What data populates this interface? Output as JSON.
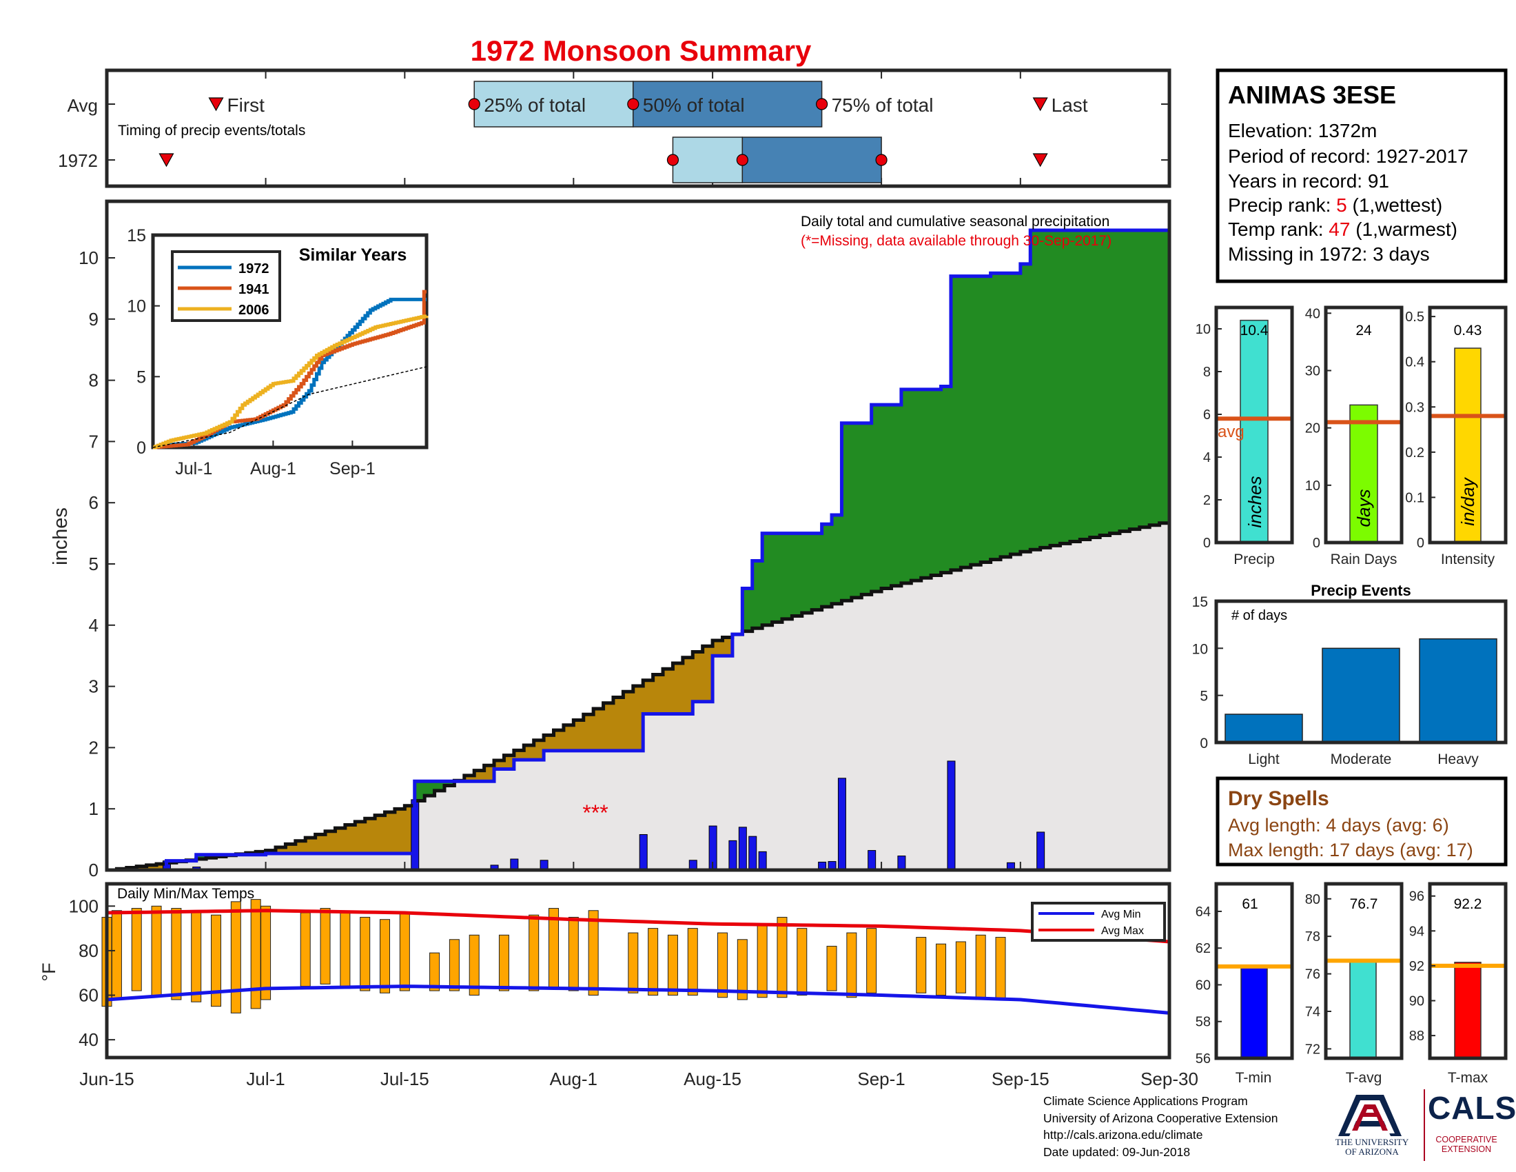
{
  "title": "1972 Monsoon Summary",
  "colors": {
    "title": "#e8000b",
    "below_avg": "#b8860b",
    "above_avg": "#228b22",
    "normal_area": "#e8e6e6",
    "observed_line": "#1515e8",
    "daily_bars": "#1515e8",
    "temp_bars": "#ffa500",
    "avg_max": "#e8000b",
    "avg_min": "#1515e8",
    "timing_light": "#add8e6",
    "timing_dark": "#4682b4",
    "event_bars": "#0072bd",
    "avg_line": "#d95319"
  },
  "timing": {
    "row_avg_label": "Avg",
    "row_year_label": "1972",
    "caption": "Timing of precip events/totals",
    "first_label": "First",
    "last_label": "Last",
    "p25_label": "25% of total",
    "p50_label": "50% of total",
    "p75_label": "75% of total",
    "avg_dates": {
      "first": "Jun-26",
      "p25": "Jul-22",
      "p50": "Aug-7",
      "p75": "Aug-26",
      "last": "Sep-17"
    },
    "year_dates": {
      "first": "Jun-21",
      "p25": "Aug-11",
      "p50": "Aug-18",
      "p75": "Sep-1",
      "last": "Sep-17"
    }
  },
  "main": {
    "ylabel": "inches",
    "caption": "Daily total and cumulative seasonal precipitation",
    "missing_note": "(*=Missing, data available through 30-Sep-2017)",
    "missing_marker": "***",
    "yticks": [
      "0",
      "1",
      "2",
      "3",
      "4",
      "5",
      "6",
      "7",
      "8",
      "9",
      "10"
    ],
    "xticks": [
      "Jun-15",
      "Jul-1",
      "Jul-15",
      "Aug-1",
      "Aug-15",
      "Sep-1",
      "Sep-15",
      "Sep-30"
    ]
  },
  "chart_data": [
    {
      "type": "area",
      "name": "Daily total and cumulative seasonal precipitation",
      "x_unit": "date",
      "ylabel": "inches",
      "ylim": [
        0,
        10.5
      ],
      "normal_cumulative": [
        [
          "Jun-15",
          0
        ],
        [
          "Jul-1",
          0.32
        ],
        [
          "Jul-15",
          1.05
        ],
        [
          "Aug-1",
          2.45
        ],
        [
          "Aug-15",
          3.75
        ],
        [
          "Sep-1",
          4.6
        ],
        [
          "Sep-15",
          5.2
        ],
        [
          "Sep-30",
          5.7
        ]
      ],
      "observed_cumulative": [
        [
          "Jun-15",
          0
        ],
        [
          "Jun-21",
          0.15
        ],
        [
          "Jun-24",
          0.25
        ],
        [
          "Jul-1",
          0.27
        ],
        [
          "Jul-15",
          0.27
        ],
        [
          "Jul-16",
          1.45
        ],
        [
          "Jul-21",
          1.45
        ],
        [
          "Jul-24",
          1.65
        ],
        [
          "Jul-26",
          1.8
        ],
        [
          "Jul-29",
          1.95
        ],
        [
          "Aug-7",
          1.95
        ],
        [
          "Aug-8",
          2.55
        ],
        [
          "Aug-12",
          2.55
        ],
        [
          "Aug-13",
          2.75
        ],
        [
          "Aug-15",
          3.5
        ],
        [
          "Aug-17",
          3.85
        ],
        [
          "Aug-18",
          4.6
        ],
        [
          "Aug-19",
          5.05
        ],
        [
          "Aug-20",
          5.5
        ],
        [
          "Aug-25",
          5.5
        ],
        [
          "Aug-26",
          5.65
        ],
        [
          "Aug-27",
          5.8
        ],
        [
          "Aug-28",
          7.3
        ],
        [
          "Aug-31",
          7.6
        ],
        [
          "Sep-3",
          7.85
        ],
        [
          "Sep-7",
          7.9
        ],
        [
          "Sep-8",
          9.7
        ],
        [
          "Sep-12",
          9.75
        ],
        [
          "Sep-15",
          9.9
        ],
        [
          "Sep-16",
          10.45
        ],
        [
          "Sep-30",
          10.45
        ]
      ],
      "daily_precip": [
        [
          "Jun-21",
          0.15
        ],
        [
          "Jun-24",
          0.05
        ],
        [
          "Jul-16",
          1.15
        ],
        [
          "Jul-24",
          0.08
        ],
        [
          "Jul-26",
          0.18
        ],
        [
          "Jul-29",
          0.16
        ],
        [
          "Aug-8",
          0.58
        ],
        [
          "Aug-13",
          0.16
        ],
        [
          "Aug-15",
          0.72
        ],
        [
          "Aug-17",
          0.48
        ],
        [
          "Aug-18",
          0.7
        ],
        [
          "Aug-19",
          0.55
        ],
        [
          "Aug-20",
          0.3
        ],
        [
          "Aug-26",
          0.13
        ],
        [
          "Aug-27",
          0.14
        ],
        [
          "Aug-28",
          1.5
        ],
        [
          "Aug-31",
          0.32
        ],
        [
          "Sep-3",
          0.23
        ],
        [
          "Sep-8",
          1.78
        ],
        [
          "Sep-14",
          0.12
        ],
        [
          "Sep-17",
          0.62
        ]
      ]
    },
    {
      "type": "line",
      "name": "Similar Years",
      "x_unit": "date",
      "xticks": [
        "Jul-1",
        "Aug-1",
        "Sep-1"
      ],
      "yticks": [
        "0",
        "5",
        "10",
        "15"
      ],
      "ylim": [
        0,
        15
      ],
      "series": [
        {
          "name": "1972",
          "color": "#0072bd",
          "points": [
            [
              "Jun-15",
              0
            ],
            [
              "Jun-21",
              0.2
            ],
            [
              "Jul-1",
              0.3
            ],
            [
              "Jul-15",
              1.4
            ],
            [
              "Jul-29",
              2
            ],
            [
              "Aug-8",
              2.5
            ],
            [
              "Aug-15",
              4
            ],
            [
              "Aug-20",
              6
            ],
            [
              "Aug-28",
              7.5
            ],
            [
              "Sep-8",
              9.7
            ],
            [
              "Sep-16",
              10.45
            ],
            [
              "Sep-30",
              10.45
            ]
          ]
        },
        {
          "name": "1941",
          "color": "#d95319",
          "points": [
            [
              "Jun-15",
              0
            ],
            [
              "Jun-28",
              0.2
            ],
            [
              "Jul-5",
              0.8
            ],
            [
              "Jul-15",
              1.8
            ],
            [
              "Jul-25",
              2
            ],
            [
              "Aug-5",
              3
            ],
            [
              "Aug-12",
              4.5
            ],
            [
              "Aug-20",
              6.5
            ],
            [
              "Sep-1",
              7.3
            ],
            [
              "Sep-15",
              8
            ],
            [
              "Sep-28",
              8.8
            ],
            [
              "Sep-29",
              11
            ]
          ]
        },
        {
          "name": "2006",
          "color": "#edb120",
          "points": [
            [
              "Jun-15",
              0
            ],
            [
              "Jun-22",
              0.5
            ],
            [
              "Jul-5",
              1
            ],
            [
              "Jul-15",
              1.8
            ],
            [
              "Jul-20",
              3
            ],
            [
              "Aug-1",
              4.5
            ],
            [
              "Aug-8",
              4.7
            ],
            [
              "Aug-18",
              6.5
            ],
            [
              "Aug-25",
              7.2
            ],
            [
              "Sep-10",
              8.5
            ],
            [
              "Sep-30",
              9.3
            ]
          ]
        },
        {
          "name": "avg",
          "color": "#000000",
          "dashed": true,
          "points": [
            [
              "Jun-15",
              0
            ],
            [
              "Jul-15",
              1.05
            ],
            [
              "Aug-15",
              3.75
            ],
            [
              "Sep-30",
              5.7
            ]
          ]
        }
      ]
    },
    {
      "type": "bar",
      "name": "Daily Min/Max Temps",
      "x_unit": "date",
      "ylabel": "°F",
      "ylim": [
        32,
        110
      ],
      "yticks": [
        "40",
        "60",
        "80",
        "100"
      ],
      "avg_max": [
        [
          "Jun-15",
          97
        ],
        [
          "Jul-1",
          98
        ],
        [
          "Jul-15",
          97
        ],
        [
          "Aug-1",
          94
        ],
        [
          "Aug-15",
          92
        ],
        [
          "Sep-1",
          91
        ],
        [
          "Sep-15",
          89
        ],
        [
          "Sep-30",
          84
        ]
      ],
      "avg_min": [
        [
          "Jun-15",
          58
        ],
        [
          "Jul-1",
          63
        ],
        [
          "Jul-15",
          64
        ],
        [
          "Aug-1",
          63
        ],
        [
          "Aug-15",
          62
        ],
        [
          "Sep-1",
          60
        ],
        [
          "Sep-15",
          58
        ],
        [
          "Sep-30",
          52
        ]
      ],
      "daily_min_max": [
        [
          "Jun-15",
          55,
          95
        ],
        [
          "Jun-16",
          58,
          98
        ],
        [
          "Jun-18",
          62,
          99
        ],
        [
          "Jun-20",
          60,
          100
        ],
        [
          "Jun-22",
          58,
          99
        ],
        [
          "Jun-24",
          57,
          97
        ],
        [
          "Jun-26",
          55,
          96
        ],
        [
          "Jun-28",
          52,
          102
        ],
        [
          "Jun-30",
          54,
          103
        ],
        [
          "Jul-1",
          58,
          100
        ],
        [
          "Jul-5",
          64,
          97
        ],
        [
          "Jul-7",
          65,
          99
        ],
        [
          "Jul-9",
          63,
          97
        ],
        [
          "Jul-11",
          62,
          95
        ],
        [
          "Jul-13",
          61,
          94
        ],
        [
          "Jul-15",
          62,
          97
        ],
        [
          "Jul-18",
          62,
          79
        ],
        [
          "Jul-20",
          62,
          85
        ],
        [
          "Jul-22",
          60,
          87
        ],
        [
          "Jul-25",
          62,
          87
        ],
        [
          "Jul-28",
          62,
          96
        ],
        [
          "Jul-30",
          63,
          99
        ],
        [
          "Aug-1",
          62,
          95
        ],
        [
          "Aug-3",
          60,
          98
        ],
        [
          "Aug-7",
          61,
          88
        ],
        [
          "Aug-9",
          60,
          90
        ],
        [
          "Aug-11",
          60,
          87
        ],
        [
          "Aug-13",
          60,
          90
        ],
        [
          "Aug-16",
          59,
          88
        ],
        [
          "Aug-18",
          58,
          85
        ],
        [
          "Aug-20",
          59,
          92
        ],
        [
          "Aug-22",
          59,
          95
        ],
        [
          "Aug-24",
          60,
          90
        ],
        [
          "Aug-27",
          62,
          82
        ],
        [
          "Aug-29",
          59,
          88
        ],
        [
          "Aug-31",
          61,
          90
        ],
        [
          "Sep-5",
          61,
          86
        ],
        [
          "Sep-7",
          60,
          83
        ],
        [
          "Sep-9",
          61,
          84
        ],
        [
          "Sep-11",
          58,
          87
        ],
        [
          "Sep-13",
          58,
          86
        ]
      ]
    },
    {
      "type": "bar",
      "name": "Summary stats",
      "categories": [
        "Precip",
        "Rain Days",
        "Intensity"
      ],
      "values": [
        10.4,
        24,
        0.43
      ],
      "averages": [
        5.8,
        21,
        0.28
      ],
      "units": [
        "inches",
        "days",
        "in/day"
      ],
      "ylims": [
        [
          0,
          11
        ],
        [
          0,
          41
        ],
        [
          0,
          0.52
        ]
      ],
      "bar_colors": [
        "#40e0d0",
        "#7cfc00",
        "#ffd700"
      ]
    },
    {
      "type": "bar",
      "name": "Precip Events",
      "title": "Precip Events",
      "ylabel": "# of days",
      "categories": [
        "Light",
        "Moderate",
        "Heavy"
      ],
      "values": [
        3,
        10,
        11
      ],
      "ylim": [
        0,
        15
      ]
    },
    {
      "type": "bar",
      "name": "Temperature summary",
      "categories": [
        "T-min",
        "T-avg",
        "T-max"
      ],
      "values": [
        61,
        76.7,
        92.2
      ],
      "averages": [
        61,
        76.7,
        92
      ],
      "ylims": [
        [
          56,
          65.5
        ],
        [
          71.5,
          80.8
        ],
        [
          86.7,
          96.7
        ]
      ],
      "bar_colors": [
        "#0000ff",
        "#40e0d0",
        "#ff0000"
      ]
    }
  ],
  "station": {
    "name": "ANIMAS 3ESE",
    "elevation_line": "Elevation: 1372m",
    "period_line": "Period of record: 1927-2017",
    "years_line": "Years in record: 91",
    "precip_rank_prefix": "Precip rank: ",
    "precip_rank_value": "5",
    "precip_rank_suffix": " (1,wettest)",
    "temp_rank_prefix": "Temp rank: ",
    "temp_rank_value": "47",
    "temp_rank_suffix": " (1,warmest)",
    "missing_line": "Missing in 1972: 3 days"
  },
  "stats": {
    "precip_value": "10.4",
    "raindays_value": "24",
    "intensity_value": "0.43",
    "avg_label": "avg",
    "unit_precip": "inches",
    "unit_days": "days",
    "unit_intensity": "in/day",
    "label_precip": "Precip",
    "label_raindays": "Rain Days",
    "label_intensity": "Intensity",
    "precip_ticks": [
      "0",
      "2",
      "4",
      "6",
      "8",
      "10"
    ],
    "raindays_ticks": [
      "0",
      "10",
      "20",
      "30",
      "40"
    ],
    "intensity_ticks": [
      "0",
      "0.1",
      "0.2",
      "0.3",
      "0.4",
      "0.5"
    ]
  },
  "events": {
    "title": "Precip Events",
    "ylabel": "# of days",
    "ticks": [
      "0",
      "5",
      "10",
      "15"
    ],
    "labels": [
      "Light",
      "Moderate",
      "Heavy"
    ]
  },
  "dry": {
    "title": "Dry Spells",
    "avg_line": "Avg length: 4 days (avg: 6)",
    "max_line": "Max length: 17 days (avg: 17)"
  },
  "temps": {
    "title": "Daily Min/Max Temps",
    "ylabel": "°F",
    "legend_min": "Avg Min",
    "legend_max": "Avg Max",
    "tmin_value": "61",
    "tavg_value": "76.7",
    "tmax_value": "92.2",
    "tmin_label": "T-min",
    "tavg_label": "T-avg",
    "tmax_label": "T-max",
    "tmin_ticks": [
      "56",
      "58",
      "60",
      "62",
      "64"
    ],
    "tavg_ticks": [
      "72",
      "74",
      "76",
      "78",
      "80"
    ],
    "tmax_ticks": [
      "88",
      "90",
      "92",
      "94",
      "96"
    ]
  },
  "inset": {
    "title": "Similar Years",
    "legend": [
      "1972",
      "1941",
      "2006"
    ]
  },
  "footer": {
    "line1": "Climate Science Applications Program",
    "line2": "University of Arizona Cooperative Extension",
    "line3": "http://cals.arizona.edu/climate",
    "line4": " Date updated: 09-Jun-2018"
  },
  "logos": {
    "ua_letter": "A",
    "ua_name_1": "THE UNIVERSITY",
    "ua_name_2": "OF ARIZONA",
    "cals": "CALS",
    "cals_sub_1": "COOPERATIVE",
    "cals_sub_2": "EXTENSION"
  }
}
